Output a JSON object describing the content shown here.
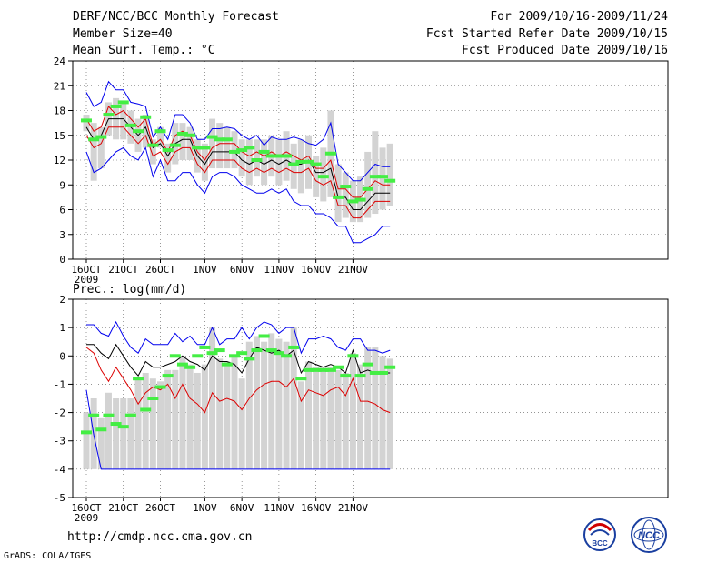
{
  "header": {
    "title": "DERF/NCC/BCC Monthly Forecast",
    "member_size": "Member Size=40",
    "period": "For 2009/10/16-2009/11/24",
    "refer_date": "Fcst Started Refer Date 2009/10/15",
    "produced_date": "Fcst Produced Date 2009/10/16"
  },
  "footer": {
    "url": "http://cmdp.ncc.cma.gov.cn",
    "credit": "GrADS: COLA/IGES",
    "logo_left_text": "BCC",
    "logo_right_text": "NCC"
  },
  "colors": {
    "bound": "#0000ee",
    "mean": "#000000",
    "spread": "#dd0000",
    "box": "#d3d3d3",
    "marker": "#44ee44",
    "grid": "#555555"
  },
  "chart_data": [
    {
      "type": "line",
      "title": "Mean Surf. Temp.: °C",
      "x_start_label": "2009",
      "x_ticks": [
        "16OCT",
        "21OCT",
        "26OCT",
        "1NOV",
        "6NOV",
        "11NOV",
        "16NOV",
        "21NOV"
      ],
      "x_tick_days": [
        1,
        6,
        11,
        17,
        22,
        27,
        32,
        37
      ],
      "ylim": [
        0,
        24
      ],
      "y_ticks": [
        0,
        3,
        6,
        9,
        12,
        15,
        18,
        21,
        24
      ],
      "series": [
        {
          "name": "upper",
          "values": [
            20.2,
            18.5,
            19.0,
            21.5,
            20.5,
            20.5,
            19.0,
            18.8,
            18.5,
            14.8,
            16.0,
            14.5,
            17.5,
            17.5,
            16.5,
            14.5,
            14.5,
            15.8,
            15.8,
            16.0,
            15.8,
            15.0,
            14.5,
            15.0,
            13.8,
            14.8,
            14.5,
            14.5,
            14.8,
            14.5,
            14.0,
            13.8,
            14.5,
            16.5,
            11.5,
            10.5,
            9.5,
            9.5,
            10.5,
            11.5,
            11.2,
            11.2
          ]
        },
        {
          "name": "upper-spread",
          "values": [
            17.0,
            15.5,
            16.0,
            18.5,
            17.5,
            18.0,
            17.0,
            16.0,
            17.0,
            13.8,
            14.5,
            13.0,
            15.0,
            15.5,
            15.0,
            13.0,
            12.0,
            13.5,
            14.0,
            14.0,
            14.0,
            13.0,
            12.5,
            13.0,
            12.5,
            13.0,
            12.5,
            13.0,
            12.5,
            12.0,
            12.5,
            11.0,
            11.0,
            12.0,
            8.5,
            8.5,
            7.5,
            7.5,
            8.5,
            9.5,
            9.0,
            9.0
          ]
        },
        {
          "name": "mean",
          "values": [
            16.0,
            14.5,
            15.0,
            17.0,
            17.0,
            17.0,
            16.0,
            15.0,
            16.0,
            13.5,
            14.0,
            12.5,
            14.0,
            14.5,
            14.5,
            12.5,
            11.5,
            13.0,
            13.0,
            13.0,
            13.0,
            12.0,
            11.5,
            12.0,
            11.5,
            12.0,
            11.5,
            12.0,
            11.5,
            11.5,
            12.0,
            10.5,
            10.5,
            11.0,
            7.5,
            7.5,
            6.0,
            6.0,
            7.0,
            8.0,
            8.0,
            8.0
          ]
        },
        {
          "name": "lower-spread",
          "values": [
            15.0,
            13.5,
            14.0,
            16.0,
            16.0,
            16.0,
            15.0,
            14.0,
            15.0,
            12.5,
            13.0,
            11.5,
            13.0,
            13.5,
            13.5,
            11.5,
            10.5,
            12.0,
            12.0,
            12.0,
            12.0,
            11.0,
            10.5,
            11.0,
            10.5,
            11.0,
            10.5,
            11.0,
            10.5,
            10.5,
            11.0,
            9.5,
            9.0,
            9.5,
            6.5,
            6.5,
            5.0,
            5.0,
            6.0,
            7.0,
            7.0,
            7.0
          ]
        },
        {
          "name": "lower",
          "values": [
            13.0,
            10.5,
            11.0,
            12.0,
            13.0,
            13.5,
            12.5,
            12.0,
            13.5,
            10.0,
            12.0,
            9.5,
            9.5,
            10.5,
            10.5,
            9.0,
            8.0,
            10.0,
            10.5,
            10.5,
            10.0,
            9.0,
            8.5,
            8.0,
            8.0,
            8.5,
            8.0,
            8.5,
            7.0,
            6.5,
            6.5,
            5.5,
            5.5,
            5.0,
            4.0,
            4.0,
            2.0,
            2.0,
            2.5,
            3.0,
            4.0,
            4.0
          ]
        }
      ],
      "boxes": {
        "low": [
          15.5,
          9.5,
          11.0,
          15.0,
          14.5,
          14.5,
          14.0,
          13.0,
          13.5,
          11.5,
          13.5,
          10.5,
          11.5,
          12.0,
          12.0,
          10.5,
          9.5,
          11.0,
          11.0,
          11.0,
          11.0,
          10.0,
          9.0,
          10.0,
          9.0,
          10.0,
          9.0,
          9.5,
          8.5,
          8.0,
          8.5,
          7.5,
          7.0,
          7.5,
          4.5,
          5.0,
          4.5,
          4.5,
          5.0,
          5.5,
          6.0,
          6.5
        ],
        "high": [
          17.5,
          16.5,
          16.0,
          19.0,
          19.5,
          19.0,
          18.0,
          17.0,
          17.5,
          14.5,
          16.0,
          14.0,
          16.5,
          16.5,
          16.0,
          14.5,
          14.0,
          17.0,
          16.5,
          16.0,
          15.5,
          14.5,
          14.5,
          14.5,
          14.5,
          15.0,
          14.5,
          15.5,
          14.0,
          14.5,
          15.0,
          12.5,
          13.5,
          18.0,
          11.5,
          10.5,
          9.5,
          10.0,
          13.0,
          15.5,
          13.5,
          14.0
        ]
      },
      "markers": [
        16.8,
        14.5,
        14.8,
        17.5,
        18.5,
        19.0,
        16.2,
        15.5,
        17.2,
        13.8,
        15.5,
        13.2,
        13.8,
        15.2,
        15.0,
        13.5,
        13.5,
        14.8,
        14.5,
        14.5,
        13.0,
        13.2,
        13.5,
        12.0,
        13.0,
        12.5,
        12.5,
        12.5,
        11.5,
        11.8,
        11.8,
        11.5,
        10.0,
        12.8,
        7.5,
        8.8,
        7.0,
        7.2,
        8.5,
        10.0,
        10.0,
        9.5
      ]
    },
    {
      "type": "line",
      "title": "Prec.: log(mm/d)",
      "x_start_label": "2009",
      "x_ticks": [
        "16OCT",
        "21OCT",
        "26OCT",
        "1NOV",
        "6NOV",
        "11NOV",
        "16NOV",
        "21NOV"
      ],
      "x_tick_days": [
        1,
        6,
        11,
        17,
        22,
        27,
        32,
        37
      ],
      "ylim": [
        -5,
        2
      ],
      "y_ticks": [
        -5,
        -4,
        -3,
        -2,
        -1,
        0,
        1,
        2
      ],
      "series": [
        {
          "name": "upper",
          "values": [
            1.1,
            1.1,
            0.8,
            0.7,
            1.2,
            0.7,
            0.3,
            0.1,
            0.6,
            0.4,
            0.4,
            0.4,
            0.8,
            0.5,
            0.7,
            0.4,
            0.4,
            1.0,
            0.4,
            0.6,
            0.6,
            1.0,
            0.6,
            1.0,
            1.2,
            1.1,
            0.8,
            1.0,
            1.0,
            0.1,
            0.6,
            0.6,
            0.7,
            0.6,
            0.3,
            0.2,
            0.6,
            0.6,
            0.2,
            0.2,
            0.1,
            0.2
          ]
        },
        {
          "name": "mean",
          "values": [
            0.4,
            0.4,
            0.1,
            -0.1,
            0.4,
            0.0,
            -0.4,
            -0.7,
            -0.2,
            -0.4,
            -0.4,
            -0.3,
            -0.2,
            0.0,
            -0.2,
            -0.3,
            -0.5,
            0.0,
            -0.2,
            -0.2,
            -0.3,
            -0.6,
            -0.1,
            0.3,
            0.2,
            0.1,
            0.2,
            0.0,
            0.2,
            -0.6,
            -0.2,
            -0.3,
            -0.4,
            -0.3,
            -0.4,
            -0.6,
            0.2,
            -0.6,
            -0.5,
            -0.6,
            -0.6,
            -0.6
          ]
        },
        {
          "name": "lower-spread",
          "values": [
            0.3,
            0.1,
            -0.5,
            -0.9,
            -0.4,
            -0.8,
            -1.2,
            -1.7,
            -1.3,
            -1.1,
            -1.2,
            -1.0,
            -1.5,
            -1.0,
            -1.5,
            -1.7,
            -2.0,
            -1.3,
            -1.6,
            -1.5,
            -1.6,
            -1.9,
            -1.5,
            -1.2,
            -1.0,
            -0.9,
            -0.9,
            -1.1,
            -0.8,
            -1.6,
            -1.2,
            -1.3,
            -1.4,
            -1.2,
            -1.1,
            -1.4,
            -0.8,
            -1.6,
            -1.6,
            -1.7,
            -1.9,
            -2.0
          ]
        },
        {
          "name": "lower",
          "values": [
            -1.2,
            -2.8,
            -4.0,
            -4.0,
            -4.0,
            -4.0,
            -4.0,
            -4.0,
            -4.0,
            -4.0,
            -4.0,
            -4.0,
            -4.0,
            -4.0,
            -4.0,
            -4.0,
            -4.0,
            -4.0,
            -4.0,
            -4.0,
            -4.0,
            -4.0,
            -4.0,
            -4.0,
            -4.0,
            -4.0,
            -4.0,
            -4.0,
            -4.0,
            -4.0,
            -4.0,
            -4.0,
            -4.0,
            -4.0,
            -4.0,
            -4.0,
            -4.0,
            -4.0,
            -4.0,
            -4.0,
            -4.0,
            -4.0
          ]
        }
      ],
      "boxes": {
        "low": [
          -4,
          -4,
          -4,
          -4,
          -4,
          -4,
          -4,
          -4,
          -4,
          -4,
          -4,
          -4,
          -4,
          -4,
          -4,
          -4,
          -4,
          -4,
          -4,
          -4,
          -4,
          -4,
          -4,
          -4,
          -4,
          -4,
          -4,
          -4,
          -4,
          -4,
          -4,
          -4,
          -4,
          -4,
          -4,
          -4,
          -4,
          -4,
          -4,
          -4,
          -4,
          -4
        ],
        "high": [
          -2.0,
          -1.5,
          -2.2,
          -1.3,
          -1.5,
          -1.5,
          -1.5,
          -0.8,
          -0.6,
          -0.8,
          -0.9,
          -0.5,
          -0.5,
          0.0,
          -0.3,
          -0.6,
          -0.3,
          1.0,
          -0.1,
          -0.2,
          0.0,
          -0.8,
          0.5,
          0.7,
          0.5,
          0.8,
          0.6,
          0.5,
          1.0,
          -0.9,
          -0.2,
          -0.4,
          -0.4,
          -0.4,
          -0.5,
          -0.6,
          0.1,
          -0.3,
          0.3,
          0.3,
          0.0,
          -0.1
        ]
      },
      "markers": [
        -2.7,
        -2.1,
        -2.6,
        -2.1,
        -2.4,
        -2.5,
        -2.1,
        -0.8,
        -1.9,
        -1.5,
        -1.1,
        -0.7,
        0.0,
        -0.3,
        -0.4,
        0.0,
        0.3,
        0.1,
        0.2,
        -0.3,
        0.0,
        0.1,
        -0.1,
        0.2,
        0.7,
        0.2,
        0.1,
        0.0,
        0.3,
        -0.8,
        -0.5,
        -0.5,
        -0.5,
        -0.5,
        -0.4,
        -0.7,
        0.0,
        -0.7,
        -0.3,
        -0.6,
        -0.6,
        -0.4
      ]
    }
  ]
}
